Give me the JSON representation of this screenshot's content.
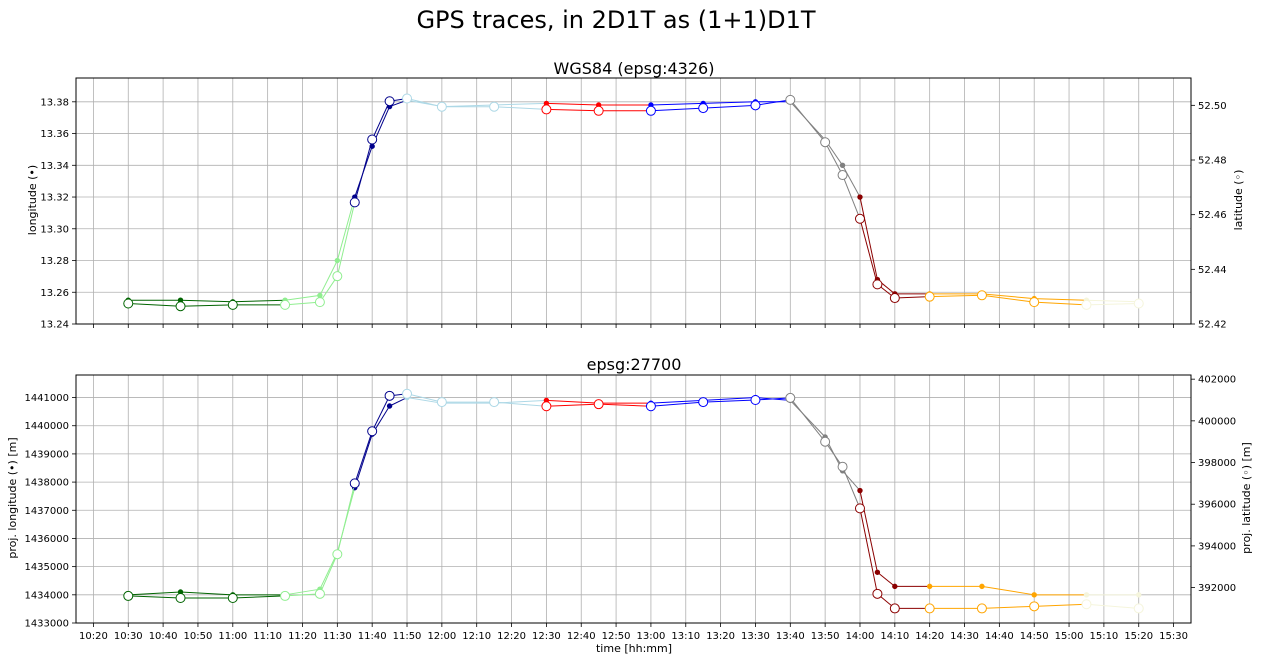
{
  "figure": {
    "title": "GPS traces, in 2D1T as (1+1)D1T"
  },
  "time_ticks": [
    "10:20",
    "10:30",
    "10:40",
    "10:50",
    "11:00",
    "11:10",
    "11:20",
    "11:30",
    "11:40",
    "11:50",
    "12:00",
    "12:10",
    "12:20",
    "12:30",
    "12:40",
    "12:50",
    "13:00",
    "13:10",
    "13:20",
    "13:30",
    "13:40",
    "13:50",
    "14:00",
    "14:10",
    "14:20",
    "14:30",
    "14:40",
    "14:50",
    "15:00",
    "15:10",
    "15:20",
    "15:30"
  ],
  "xlabel": "time [hh:mm]",
  "segment_colors": [
    "#006400",
    "#90ee90",
    "#00008b",
    "#add8e6",
    "#ff0000",
    "#0000ff",
    "#808080",
    "#8b0000",
    "#ffa500",
    "#f5f5dc"
  ],
  "chart_data": [
    {
      "type": "line",
      "title": "WGS84 (epsg:4326)",
      "ylabel": "longitude (•)",
      "y2label": "latitude (◦)",
      "xlim": [
        "10:15",
        "15:35"
      ],
      "ylim": [
        13.24,
        13.395
      ],
      "y2lim": [
        52.42,
        52.51
      ],
      "yticks": [
        "13.24",
        "13.26",
        "13.28",
        "13.30",
        "13.32",
        "13.34",
        "13.36",
        "13.38"
      ],
      "y2ticks": [
        "52.42",
        "52.44",
        "52.46",
        "52.48",
        "52.50"
      ],
      "grid": true,
      "series": [
        {
          "marker": "filled-dot",
          "axis": "left",
          "x": [
            "10:30",
            "10:45",
            "11:00",
            "11:15",
            "11:25",
            "11:30",
            "11:35",
            "11:40",
            "11:45",
            "11:50",
            "12:00",
            "12:15",
            "12:30",
            "12:45",
            "13:00",
            "13:15",
            "13:30",
            "13:40",
            "13:50",
            "13:55",
            "14:00",
            "14:05",
            "14:10",
            "14:20",
            "14:35",
            "14:50",
            "15:05",
            "15:20"
          ],
          "y": [
            13.255,
            13.255,
            13.254,
            13.255,
            13.258,
            13.28,
            13.32,
            13.352,
            13.377,
            13.381,
            13.377,
            13.378,
            13.379,
            13.378,
            13.378,
            13.379,
            13.38,
            13.38,
            13.356,
            13.34,
            13.32,
            13.268,
            13.259,
            13.259,
            13.259,
            13.256,
            13.255,
            13.254
          ]
        },
        {
          "marker": "hollow-circle",
          "axis": "right",
          "x": [
            "10:30",
            "10:45",
            "11:00",
            "11:15",
            "11:25",
            "11:30",
            "11:35",
            "11:40",
            "11:45",
            "11:50",
            "12:00",
            "12:15",
            "12:30",
            "12:45",
            "13:00",
            "13:15",
            "13:30",
            "13:40",
            "13:50",
            "13:55",
            "14:00",
            "14:05",
            "14:10",
            "14:20",
            "14:35",
            "14:50",
            "15:05",
            "15:20"
          ],
          "y": [
            52.4275,
            52.4265,
            52.427,
            52.427,
            52.428,
            52.4375,
            52.4645,
            52.4875,
            52.5015,
            52.5025,
            52.4995,
            52.4995,
            52.4985,
            52.498,
            52.498,
            52.499,
            52.5,
            52.502,
            52.4865,
            52.4745,
            52.4585,
            52.4345,
            52.4295,
            52.43,
            52.4305,
            52.428,
            52.427,
            52.4275
          ]
        }
      ]
    },
    {
      "type": "line",
      "title": "epsg:27700",
      "ylabel": "proj. longitude (•) [m]",
      "y2label": "proj. latitude (◦) [m]",
      "xlim": [
        "10:15",
        "15:35"
      ],
      "ylim": [
        1433000,
        1441800
      ],
      "y2lim": [
        390300,
        402200
      ],
      "yticks": [
        "1433000",
        "1434000",
        "1435000",
        "1436000",
        "1437000",
        "1438000",
        "1439000",
        "1440000",
        "1441000"
      ],
      "y2ticks": [
        "392000",
        "394000",
        "396000",
        "398000",
        "400000",
        "402000"
      ],
      "grid": true,
      "series": [
        {
          "marker": "filled-dot",
          "axis": "left",
          "x": [
            "10:30",
            "10:45",
            "11:00",
            "11:15",
            "11:25",
            "11:30",
            "11:35",
            "11:40",
            "11:45",
            "11:50",
            "12:00",
            "12:15",
            "12:30",
            "12:45",
            "13:00",
            "13:15",
            "13:30",
            "13:40",
            "13:50",
            "13:55",
            "14:00",
            "14:05",
            "14:10",
            "14:20",
            "14:35",
            "14:50",
            "15:05",
            "15:20"
          ],
          "y": [
            1434000,
            1434100,
            1434000,
            1434000,
            1434200,
            1435500,
            1437800,
            1439700,
            1440700,
            1441000,
            1440800,
            1440800,
            1440900,
            1440800,
            1440800,
            1440900,
            1441000,
            1440900,
            1439600,
            1438400,
            1437700,
            1434800,
            1434300,
            1434300,
            1434300,
            1434000,
            1434000,
            1434000
          ]
        },
        {
          "marker": "hollow-circle",
          "axis": "right",
          "x": [
            "10:30",
            "10:45",
            "11:00",
            "11:15",
            "11:25",
            "11:30",
            "11:35",
            "11:40",
            "11:45",
            "11:50",
            "12:00",
            "12:15",
            "12:30",
            "12:45",
            "13:00",
            "13:15",
            "13:30",
            "13:40",
            "13:50",
            "13:55",
            "14:00",
            "14:05",
            "14:10",
            "14:20",
            "14:35",
            "14:50",
            "15:05",
            "15:20"
          ],
          "y": [
            391600,
            391500,
            391500,
            391600,
            391700,
            393600,
            397000,
            399500,
            401200,
            401300,
            400900,
            400900,
            400700,
            400800,
            400700,
            400900,
            401000,
            401100,
            399000,
            397800,
            395800,
            391700,
            391000,
            391000,
            391000,
            391100,
            391200,
            391000
          ]
        }
      ]
    }
  ]
}
